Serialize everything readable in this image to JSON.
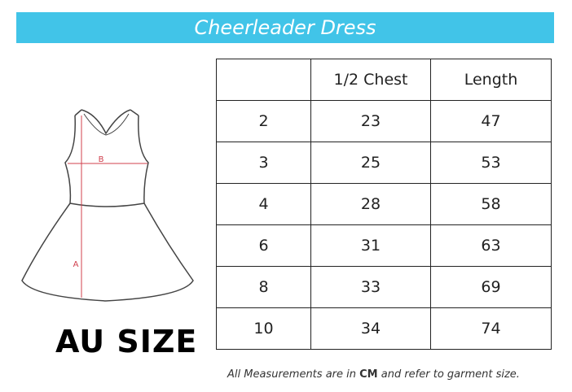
{
  "title": "Cheerleader Dress",
  "region_label": "AU SIZE",
  "diagram": {
    "label_a": "A",
    "label_b": "B",
    "accent_color": "#d0404e"
  },
  "table": {
    "headers": [
      "",
      "1/2 Chest",
      "Length"
    ],
    "rows": [
      [
        "2",
        "23",
        "47"
      ],
      [
        "3",
        "25",
        "53"
      ],
      [
        "4",
        "28",
        "58"
      ],
      [
        "6",
        "31",
        "63"
      ],
      [
        "8",
        "33",
        "69"
      ],
      [
        "10",
        "34",
        "74"
      ]
    ]
  },
  "note": {
    "before": "All Measurements are in ",
    "unit": "CM",
    "after": " and refer to garment size."
  },
  "colors": {
    "banner": "#41c4e8"
  }
}
